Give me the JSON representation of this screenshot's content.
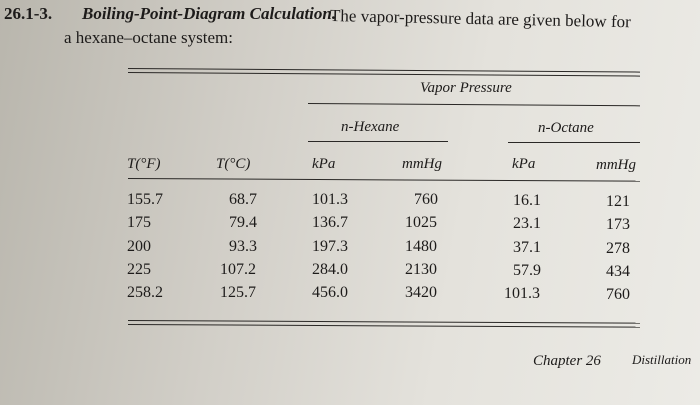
{
  "problem": {
    "number": "26.1-3.",
    "title": "Boiling-Point-Diagram Calculation.",
    "text_line1": "The vapor-pressure data are given below for",
    "text_line2": "a hexane–octane system:"
  },
  "table": {
    "group_header": "Vapor Pressure",
    "sub_headers": [
      "n-Hexane",
      "n-Octane"
    ],
    "columns": [
      "T(°F)",
      "T(°C)",
      "kPa",
      "mmHg",
      "kPa",
      "mmHg"
    ],
    "rows": [
      [
        "155.7",
        "68.7",
        "101.3",
        "760",
        "16.1",
        "121"
      ],
      [
        "175",
        "79.4",
        "136.7",
        "1025",
        "23.1",
        "173"
      ],
      [
        "200",
        "93.3",
        "197.3",
        "1480",
        "37.1",
        "278"
      ],
      [
        "225",
        "107.2",
        "284.0",
        "2130",
        "57.9",
        "434"
      ],
      [
        "258.2",
        "125.7",
        "456.0",
        "3420",
        "101.3",
        "760"
      ]
    ]
  },
  "footer": {
    "chapter": "Chapter 26",
    "section": "Distillation"
  }
}
